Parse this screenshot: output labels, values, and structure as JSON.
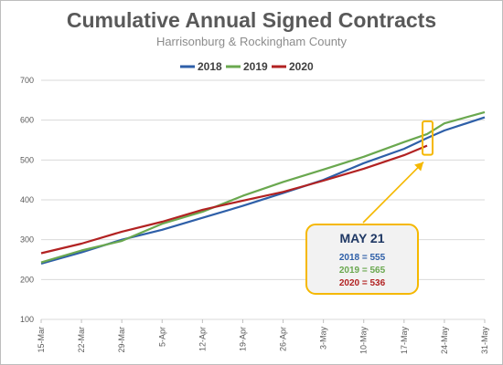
{
  "chart_data": {
    "type": "line",
    "title": "Cumulative Annual Signed Contracts",
    "subtitle": "Harrisonburg & Rockingham County",
    "xlabel": "",
    "ylabel": "",
    "ylim": [
      100,
      700
    ],
    "y_ticks": [
      100,
      200,
      300,
      400,
      500,
      600,
      700
    ],
    "x_range": [
      "03-15",
      "05-31"
    ],
    "x_tick_labels": [
      "15-Mar",
      "22-Mar",
      "29-Mar",
      "5-Apr",
      "12-Apr",
      "19-Apr",
      "26-Apr",
      "3-May",
      "10-May",
      "17-May",
      "24-May",
      "31-May"
    ],
    "grid": "horizontal",
    "legend_position": "top",
    "series": [
      {
        "name": "2018",
        "color": "#2e5fa8",
        "x": [
          "03-15",
          "03-22",
          "03-29",
          "04-05",
          "04-12",
          "04-19",
          "04-26",
          "05-03",
          "05-10",
          "05-17",
          "05-21",
          "05-24",
          "05-31"
        ],
        "y": [
          240,
          268,
          300,
          325,
          355,
          385,
          417,
          450,
          492,
          528,
          555,
          574,
          607
        ]
      },
      {
        "name": "2019",
        "color": "#6aa84f",
        "x": [
          "03-15",
          "03-22",
          "03-29",
          "04-05",
          "04-12",
          "04-19",
          "04-26",
          "05-03",
          "05-10",
          "05-17",
          "05-21",
          "05-24",
          "05-31"
        ],
        "y": [
          243,
          273,
          297,
          340,
          370,
          410,
          445,
          476,
          508,
          545,
          565,
          592,
          620
        ]
      },
      {
        "name": "2020",
        "color": "#b22222",
        "x": [
          "03-15",
          "03-22",
          "03-29",
          "04-05",
          "04-12",
          "04-19",
          "04-26",
          "05-03",
          "05-10",
          "05-17",
          "05-21"
        ],
        "y": [
          266,
          290,
          320,
          345,
          375,
          398,
          420,
          448,
          478,
          512,
          536
        ]
      }
    ],
    "annotation": {
      "title": "MAY 21",
      "x": "05-21",
      "lines": [
        {
          "text": "2018 = 555",
          "color": "#2e5fa8"
        },
        {
          "text": "2019 = 565",
          "color": "#6aa84f"
        },
        {
          "text": "2020 = 536",
          "color": "#b22222"
        }
      ],
      "highlight_color": "#f5b800",
      "box_fill": "#f2f2f2"
    }
  }
}
